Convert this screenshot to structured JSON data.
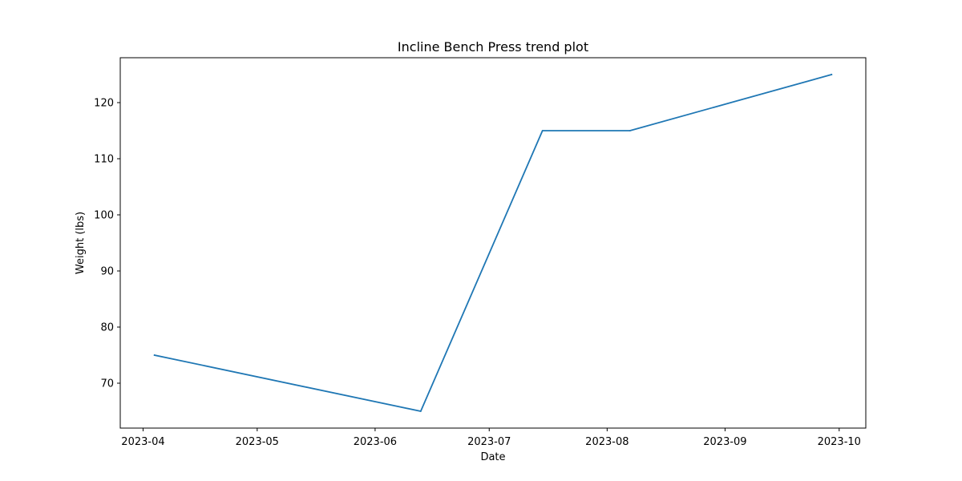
{
  "chart_data": {
    "type": "line",
    "title": "Incline Bench Press trend plot",
    "xlabel": "Date",
    "ylabel": "Weight (lbs)",
    "x_tick_labels": [
      "2023-04",
      "2023-05",
      "2023-06",
      "2023-07",
      "2023-08",
      "2023-09",
      "2023-10"
    ],
    "x_ticks": [
      "2023-04-01",
      "2023-05-01",
      "2023-06-01",
      "2023-07-01",
      "2023-08-01",
      "2023-09-01",
      "2023-10-01"
    ],
    "y_tick_labels": [
      "70",
      "80",
      "90",
      "100",
      "110",
      "120"
    ],
    "y_ticks": [
      70,
      80,
      90,
      100,
      110,
      120
    ],
    "xlim": [
      "2023-03-26",
      "2023-10-08"
    ],
    "ylim": [
      62,
      128
    ],
    "grid": false,
    "series": [
      {
        "color": "#1f77b4",
        "x": [
          "2023-04-04",
          "2023-06-13",
          "2023-07-15",
          "2023-08-07",
          "2023-09-29"
        ],
        "y": [
          75,
          65,
          115,
          115,
          125
        ]
      }
    ]
  }
}
